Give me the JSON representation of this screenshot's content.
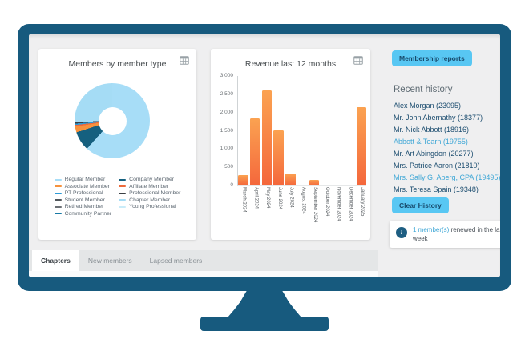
{
  "window": {
    "bezel_color": "#175a7e",
    "screen_bg": "#efeff0"
  },
  "chart_data": [
    {
      "type": "pie",
      "donut": true,
      "title": "Members by member type",
      "legend_position": "bottom",
      "slices": [
        {
          "label": "Regular Member",
          "color": "#a7ddf7",
          "percent": 61.7
        },
        {
          "label": "Company Member",
          "color": "#15607f",
          "percent": 8.3
        },
        {
          "label": "Associate Member",
          "color": "#f6923d",
          "percent": 2.5
        },
        {
          "label": "Affiliate Member",
          "color": "#ed6a3c",
          "percent": 0.7
        },
        {
          "label": "PT Professional",
          "color": "#2e9bd6",
          "percent": 0.6
        },
        {
          "label": "Professional Member",
          "color": "#3a3f44",
          "percent": 0.7
        },
        {
          "label": "Student Member",
          "color": "#51575c",
          "percent": 0
        },
        {
          "label": "Chapter Member",
          "color": "#a5dcf5",
          "percent": 25.5
        },
        {
          "label": "Retired Member",
          "color": "#6b7075",
          "percent": 0
        },
        {
          "label": "Young Professional",
          "color": "#c9ecf9",
          "percent": 0
        },
        {
          "label": "Community Partner",
          "color": "#1879a5",
          "percent": 0
        }
      ]
    },
    {
      "type": "bar",
      "title": "Revenue last 12 months",
      "categories": [
        "March 2024",
        "April 2024",
        "May 2024",
        "June 2024",
        "July 2024",
        "August 2024",
        "September 2024",
        "October 2024",
        "November 2024",
        "December 2024",
        "January 2025"
      ],
      "values": [
        280,
        1850,
        2600,
        1520,
        330,
        0,
        160,
        0,
        0,
        0,
        2150
      ],
      "ylim": [
        0,
        3000
      ],
      "ytick_step": 500,
      "ytick_labels": [
        "0",
        "500",
        "1,000",
        "1,500",
        "2,000",
        "2,500",
        "3,000"
      ],
      "grid": false,
      "bar_gradient": [
        "#fba251",
        "#f4673c"
      ]
    }
  ],
  "right_panel": {
    "reports_button_label": "Membership reports",
    "recent_history_title": "Recent history",
    "history_items": [
      {
        "label": "Alex Morgan (23095)",
        "highlighted": false
      },
      {
        "label": "Mr. John Abernathy (18377)",
        "highlighted": false
      },
      {
        "label": "Mr. Nick Abbott (18916)",
        "highlighted": false
      },
      {
        "label": "Abbott & Tearn (19755)",
        "highlighted": true
      },
      {
        "label": "Mr. Art Abingdon (20277)",
        "highlighted": false
      },
      {
        "label": "Mrs. Patrice Aaron (21810)",
        "highlighted": false
      },
      {
        "label": "Mrs. Sally G. Aberg, CPA (19495)",
        "highlighted": true
      },
      {
        "label": "Mrs. Teresa Spain (19348)",
        "highlighted": false
      }
    ],
    "clear_button_label": "Clear History",
    "info_note": {
      "link_text": "1 member(s)",
      "rest_text": "renewed in the last week"
    }
  },
  "tabs": [
    {
      "label": "Chapters",
      "active": true
    },
    {
      "label": "New members",
      "active": false
    },
    {
      "label": "Lapsed members",
      "active": false
    }
  ],
  "colors": {
    "accent_button": "#58c7f3",
    "accent_button_text": "#17496b",
    "link_blue": "#3fa7d6",
    "dark_link": "#1d4e70",
    "info_icon_bg": "#1e5e82"
  }
}
